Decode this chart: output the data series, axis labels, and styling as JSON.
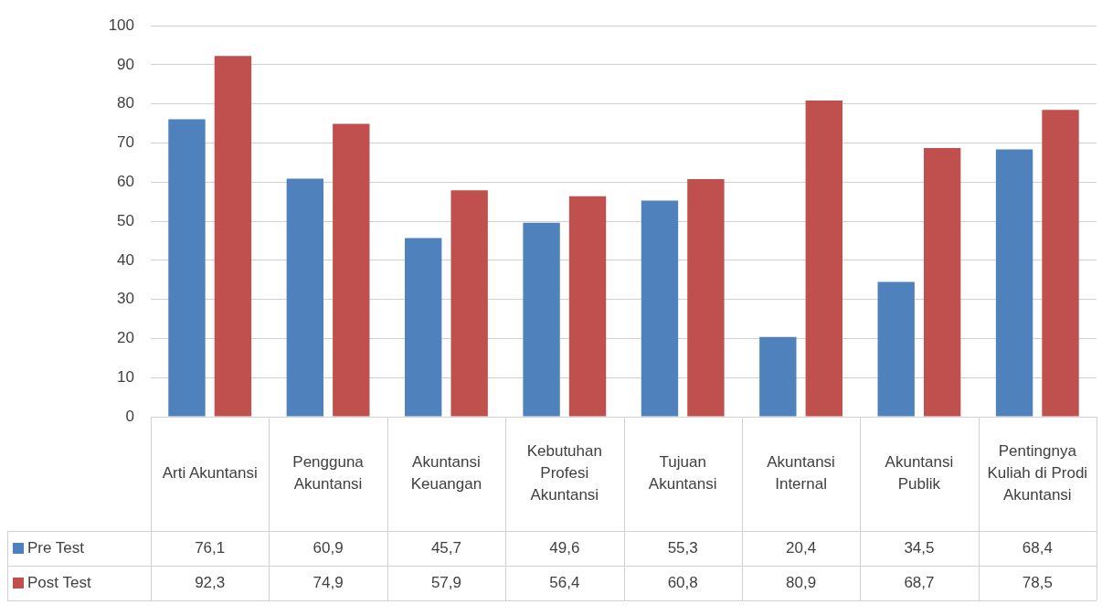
{
  "chart_data": {
    "type": "bar",
    "categories": [
      "Arti Akuntansi",
      "Pengguna Akuntansi",
      "Akuntansi Keuangan",
      "Kebutuhan Profesi Akuntansi",
      "Tujuan Akuntansi",
      "Akuntansi Internal",
      "Akuntansi Publik",
      "Pentingnya Kuliah di Prodi Akuntansi"
    ],
    "series": [
      {
        "name": "Pre Test",
        "color": "#4f81bd",
        "values": [
          76.1,
          60.9,
          45.7,
          49.6,
          55.3,
          20.4,
          34.5,
          68.4
        ],
        "value_labels": [
          "76,1",
          "60,9",
          "45,7",
          "49,6",
          "55,3",
          "20,4",
          "34,5",
          "68,4"
        ]
      },
      {
        "name": "Post Test",
        "color": "#c0504d",
        "values": [
          92.3,
          74.9,
          57.9,
          56.4,
          60.8,
          80.9,
          68.7,
          78.5
        ],
        "value_labels": [
          "92,3",
          "74,9",
          "57,9",
          "56,4",
          "60,8",
          "80,9",
          "68,7",
          "78,5"
        ]
      }
    ],
    "ylim": [
      0,
      100
    ],
    "yticks": [
      0,
      10,
      20,
      30,
      40,
      50,
      60,
      70,
      80,
      90,
      100
    ],
    "grid": "y",
    "legend": "bottom"
  }
}
